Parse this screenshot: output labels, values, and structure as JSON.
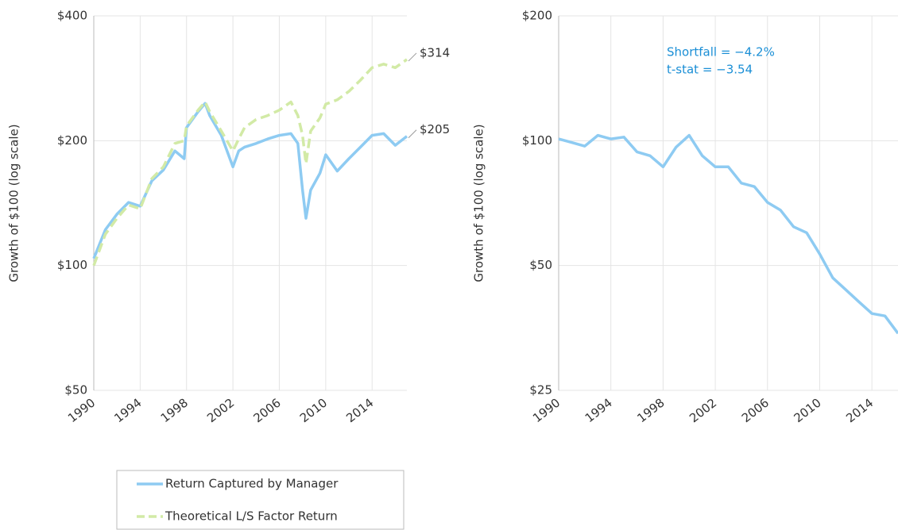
{
  "chart_data": [
    {
      "type": "line",
      "ylabel": "Growth of $100 (log scale)",
      "log_scale": true,
      "grid": true,
      "ylim": [
        50,
        400
      ],
      "yticks": [
        {
          "value": 50,
          "label": "$50"
        },
        {
          "value": 100,
          "label": "$100"
        },
        {
          "value": 200,
          "label": "$200"
        },
        {
          "value": 400,
          "label": "$400"
        }
      ],
      "xlim": [
        1990,
        2017
      ],
      "xticks": [
        1990,
        1994,
        1998,
        2002,
        2006,
        2010,
        2014
      ],
      "legend": "bottom",
      "end_labels": [
        "$205",
        "$314"
      ],
      "x": [
        1990,
        1991,
        1992,
        1993,
        1994,
        1995,
        1996,
        1997,
        1997.8,
        1998,
        1999,
        1999.6,
        2000,
        2001,
        2002,
        2002.5,
        2003,
        2004,
        2005,
        2006,
        2007,
        2007.6,
        2008,
        2008.3,
        2008.7,
        2009.5,
        2010,
        2011,
        2012,
        2013,
        2014,
        2015,
        2016,
        2017
      ],
      "series": [
        {
          "name": "Return Captured by Manager",
          "color": "#8ecbf2",
          "dash": false,
          "values": [
            104,
            122,
            133,
            142,
            139,
            160,
            170,
            189,
            181,
            215,
            235,
            246,
            230,
            206,
            173,
            189,
            193,
            197,
            202,
            206,
            208,
            197,
            152,
            130,
            152,
            167,
            185,
            169,
            181,
            193,
            206,
            208,
            195,
            205
          ]
        },
        {
          "name": "Theoretical L/S Factor Return",
          "color": "#d2eaa6",
          "dash": true,
          "values": [
            100,
            119,
            130,
            140,
            137,
            162,
            173,
            197,
            200,
            217,
            237,
            248,
            235,
            211,
            189,
            202,
            215,
            225,
            230,
            237,
            248,
            230,
            206,
            176,
            211,
            227,
            245,
            251,
            263,
            280,
            300,
            306,
            300,
            314
          ]
        }
      ]
    },
    {
      "type": "line",
      "ylabel": "Growth of $100 (log scale)",
      "log_scale": true,
      "grid": true,
      "ylim": [
        25,
        200
      ],
      "yticks": [
        {
          "value": 25,
          "label": "$25"
        },
        {
          "value": 50,
          "label": "$50"
        },
        {
          "value": 100,
          "label": "$100"
        },
        {
          "value": 200,
          "label": "$200"
        }
      ],
      "xlim": [
        1990,
        2016
      ],
      "xticks": [
        1990,
        1994,
        1998,
        2002,
        2006,
        2010,
        2014
      ],
      "annotations": [
        "Shortfall = −4.2%",
        "t-stat = −3.54"
      ],
      "x": [
        1990,
        1991,
        1992,
        1993,
        1994,
        1995,
        1996,
        1997,
        1998,
        1999,
        2000,
        2001,
        2002,
        2003,
        2004,
        2005,
        2006,
        2007,
        2008,
        2009,
        2010,
        2011,
        2012,
        2013,
        2014,
        2015,
        2016
      ],
      "series": [
        {
          "color": "#8ecbf2",
          "dash": false,
          "values": [
            101,
            99,
            97,
            103,
            101,
            102,
            94,
            92,
            86.5,
            96.5,
            103,
            92,
            86.5,
            86.5,
            79,
            77.5,
            71,
            68,
            62,
            60,
            53.3,
            46.7,
            43.7,
            40.9,
            38.3,
            37.8,
            34.3
          ]
        }
      ]
    }
  ]
}
